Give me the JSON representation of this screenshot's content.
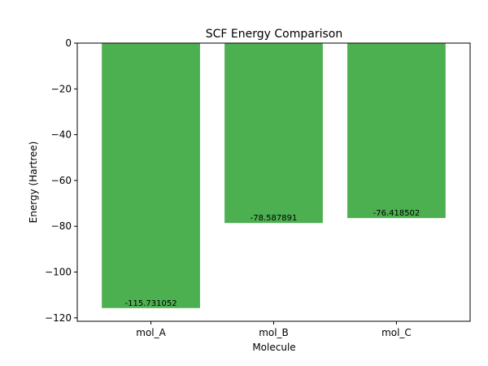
{
  "chart_data": {
    "type": "bar",
    "title": "SCF Energy Comparison",
    "xlabel": "Molecule",
    "ylabel": "Energy (Hartree)",
    "categories": [
      "mol_A",
      "mol_B",
      "mol_C"
    ],
    "values": [
      -115.731052,
      -78.587891,
      -76.418502
    ],
    "data_labels": [
      "-115.731052",
      "-78.587891",
      "-76.418502"
    ],
    "ylim": [
      -121.5,
      0
    ],
    "yticks": [
      0,
      -20,
      -40,
      -60,
      -80,
      -100,
      -120
    ],
    "ytick_labels": [
      "0",
      "−20",
      "−40",
      "−60",
      "−80",
      "−100",
      "−120"
    ],
    "bar_color": "#4caf50",
    "grid": false,
    "legend": "none"
  }
}
